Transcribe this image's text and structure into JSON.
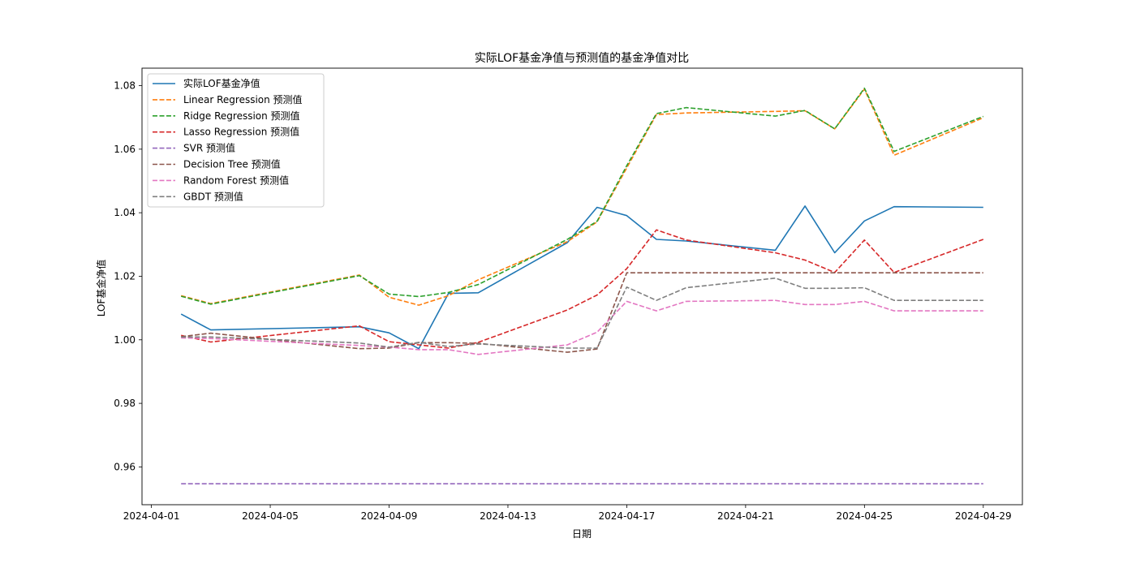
{
  "chart_data": {
    "type": "line",
    "title": "实际LOF基金净值与预测值的基金净值对比",
    "xlabel": "日期",
    "ylabel": "LOF基金净值",
    "x_ticks": [
      "2024-04-01",
      "2024-04-05",
      "2024-04-09",
      "2024-04-13",
      "2024-04-17",
      "2024-04-21",
      "2024-04-25",
      "2024-04-29"
    ],
    "y_ticks": [
      0.96,
      0.98,
      1.0,
      1.02,
      1.04,
      1.06,
      1.08
    ],
    "y_tick_labels": [
      "0.96",
      "0.98",
      "1.00",
      "1.02",
      "1.04",
      "1.06",
      "1.08"
    ],
    "xlim": [
      "2024-03-31T16:24",
      "2024-04-30T07:36"
    ],
    "ylim": [
      0.9481,
      1.0855
    ],
    "grid": false,
    "legend_position": "upper-left",
    "x": [
      "2024-04-02",
      "2024-04-03",
      "2024-04-08",
      "2024-04-09",
      "2024-04-10",
      "2024-04-11",
      "2024-04-12",
      "2024-04-15",
      "2024-04-16",
      "2024-04-17",
      "2024-04-18",
      "2024-04-19",
      "2024-04-22",
      "2024-04-23",
      "2024-04-24",
      "2024-04-25",
      "2024-04-26",
      "2024-04-29"
    ],
    "series": [
      {
        "name": "实际LOF基金净值",
        "color": "#1f77b4",
        "style": "solid",
        "values": [
          1.0081,
          1.0031,
          1.0041,
          1.0022,
          0.9972,
          1.0146,
          1.0148,
          1.0306,
          1.0417,
          1.0391,
          1.0316,
          1.0311,
          1.0282,
          1.0421,
          1.0274,
          1.0374,
          1.0419,
          1.0417
        ]
      },
      {
        "name": "Linear Regression 预测值",
        "color": "#ff7f0e",
        "style": "dashed",
        "values": [
          1.0139,
          1.0114,
          1.0204,
          1.0134,
          1.0109,
          1.0139,
          1.0189,
          1.0309,
          1.0371,
          1.0541,
          1.0709,
          1.0714,
          1.0719,
          1.0721,
          1.0664,
          1.0789,
          1.0581,
          1.0699
        ]
      },
      {
        "name": "Ridge Regression 预测值",
        "color": "#2ca02c",
        "style": "dashed",
        "values": [
          1.0137,
          1.0112,
          1.0202,
          1.0144,
          1.0136,
          1.0149,
          1.0174,
          1.0316,
          1.0373,
          1.0548,
          1.0712,
          1.0731,
          1.0704,
          1.0722,
          1.0664,
          1.0792,
          1.0593,
          1.0703
        ]
      },
      {
        "name": "Lasso Regression 预测值",
        "color": "#d62728",
        "style": "dashed",
        "values": [
          1.0014,
          0.9993,
          1.0044,
          0.9994,
          0.9984,
          0.9974,
          0.9992,
          1.0094,
          1.0141,
          1.0224,
          1.0346,
          1.0314,
          1.0274,
          1.0251,
          1.0212,
          1.0314,
          1.0212,
          1.0316
        ]
      },
      {
        "name": "SVR 预测值",
        "color": "#9467bd",
        "style": "dashed",
        "values": [
          0.9547,
          0.9547,
          0.9547,
          0.9547,
          0.9547,
          0.9547,
          0.9547,
          0.9547,
          0.9547,
          0.9547,
          0.9547,
          0.9547,
          0.9547,
          0.9547,
          0.9547,
          0.9547,
          0.9547,
          0.9547
        ]
      },
      {
        "name": "Decision Tree 预测值",
        "color": "#8c564b",
        "style": "dashed",
        "values": [
          1.001,
          1.0021,
          0.9972,
          0.9974,
          0.9991,
          0.9991,
          0.9989,
          0.9961,
          0.9971,
          1.0211,
          1.0211,
          1.0211,
          1.0211,
          1.0211,
          1.0211,
          1.0211,
          1.0211,
          1.0211
        ]
      },
      {
        "name": "Random Forest 预测值",
        "color": "#e377c2",
        "style": "dashed",
        "values": [
          1.0006,
          1.0004,
          0.9982,
          0.9977,
          0.9969,
          0.9969,
          0.9954,
          0.9984,
          1.0024,
          1.0121,
          1.0091,
          1.0121,
          1.0124,
          1.0111,
          1.0111,
          1.0121,
          1.0091,
          1.0091
        ]
      },
      {
        "name": "GBDT 预测值",
        "color": "#7f7f7f",
        "style": "dashed",
        "values": [
          1.0009,
          1.0009,
          0.999,
          0.9977,
          0.9992,
          0.9979,
          0.9987,
          0.9974,
          0.9974,
          1.0166,
          1.0124,
          1.0164,
          1.0194,
          1.0162,
          1.0162,
          1.0164,
          1.0124,
          1.0124
        ]
      }
    ]
  }
}
